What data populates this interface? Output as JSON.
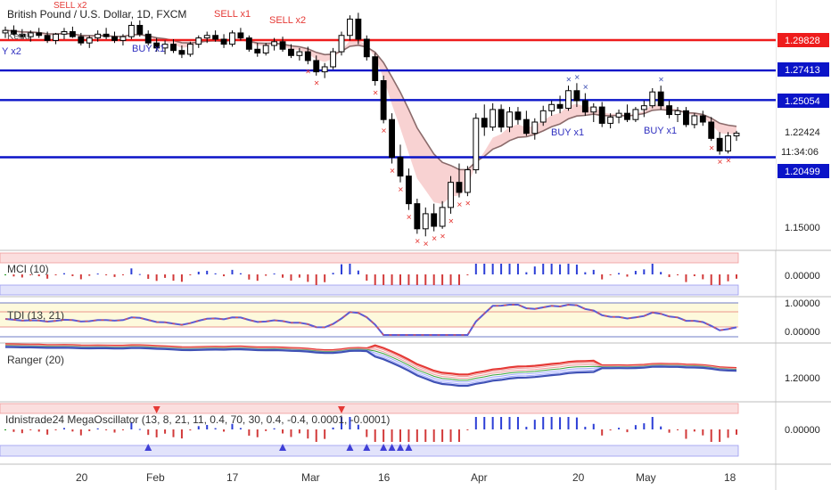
{
  "symbol_title": "British Pound / U.S. Dollar, 1D, FXCM",
  "colors": {
    "red_level": "#ee1c1c",
    "blue_level": "#0b14c8",
    "bull": "#ffffff",
    "bear": "#000000",
    "ma": "#8b6b6b",
    "fill": "#f6c7c7"
  },
  "price_axis": {
    "levels": [
      {
        "label": "1.29828",
        "price": 1.29828,
        "color": "#ee1c1c"
      },
      {
        "label": "1.27413",
        "price": 1.27413,
        "color": "#0b14c8"
      },
      {
        "label": "1.25054",
        "price": 1.25054,
        "color": "#0b14c8"
      },
      {
        "label": "1.20499",
        "price": 1.20499,
        "color": "#0b14c8"
      }
    ],
    "last_price": "1.22424",
    "countdown": "11:34:06",
    "ticks": [
      {
        "label": "1.15000",
        "price": 1.15
      }
    ]
  },
  "signals": [
    {
      "label": "SELL x2",
      "color": "red"
    },
    {
      "label": "SELL x1",
      "color": "red"
    },
    {
      "label": "SELL x2",
      "color": "red"
    },
    {
      "label": "BUY x1",
      "color": "blue"
    },
    {
      "label": "Y x2",
      "color": "blue"
    },
    {
      "label": "BUY x1",
      "color": "blue"
    },
    {
      "label": "BUY x1",
      "color": "blue"
    }
  ],
  "main_legend": "Kenu",
  "panes": [
    {
      "id": "mci",
      "title": "MCI (10)",
      "axis": [
        "0.00000"
      ]
    },
    {
      "id": "tdi",
      "title": "TDI (13, 21)",
      "axis": [
        "1.00000",
        "0.00000"
      ]
    },
    {
      "id": "ranger",
      "title": "Ranger (20)",
      "axis": [
        "1.20000"
      ]
    },
    {
      "id": "mega",
      "title": "Idnistrade24 MegaOscillator (13, 8, 21, 11, 0.4, 70, 30, 0.4, -0.4, 0.0001, -0.0001)",
      "axis": [
        "0.00000"
      ]
    }
  ],
  "time_axis": [
    "20",
    "Feb",
    "17",
    "Mar",
    "16",
    "Apr",
    "20",
    "May",
    "18"
  ],
  "chart_data": {
    "type": "candlestick",
    "title": "British Pound / U.S. Dollar, 1D, FXCM",
    "price_range": [
      1.12,
      1.34
    ],
    "horizontal_levels": [
      1.29828,
      1.27413,
      1.25054,
      1.20499
    ],
    "candles": [
      [
        1.304,
        1.309,
        1.3,
        1.306
      ],
      [
        1.306,
        1.31,
        1.302,
        1.303
      ],
      [
        1.303,
        1.307,
        1.299,
        1.301
      ],
      [
        1.301,
        1.306,
        1.297,
        1.304
      ],
      [
        1.304,
        1.308,
        1.3,
        1.302
      ],
      [
        1.302,
        1.305,
        1.296,
        1.298
      ],
      [
        1.298,
        1.304,
        1.295,
        1.303
      ],
      [
        1.303,
        1.308,
        1.299,
        1.305
      ],
      [
        1.305,
        1.309,
        1.3,
        1.301
      ],
      [
        1.301,
        1.304,
        1.294,
        1.296
      ],
      [
        1.296,
        1.302,
        1.292,
        1.3
      ],
      [
        1.3,
        1.306,
        1.297,
        1.303
      ],
      [
        1.303,
        1.308,
        1.299,
        1.301
      ],
      [
        1.301,
        1.305,
        1.296,
        1.298
      ],
      [
        1.298,
        1.303,
        1.294,
        1.301
      ],
      [
        1.301,
        1.313,
        1.299,
        1.31
      ],
      [
        1.31,
        1.314,
        1.301,
        1.303
      ],
      [
        1.303,
        1.306,
        1.294,
        1.296
      ],
      [
        1.296,
        1.3,
        1.289,
        1.292
      ],
      [
        1.292,
        1.298,
        1.287,
        1.295
      ],
      [
        1.295,
        1.299,
        1.288,
        1.29
      ],
      [
        1.29,
        1.294,
        1.284,
        1.287
      ],
      [
        1.287,
        1.297,
        1.285,
        1.295
      ],
      [
        1.295,
        1.302,
        1.292,
        1.3
      ],
      [
        1.3,
        1.305,
        1.296,
        1.302
      ],
      [
        1.302,
        1.306,
        1.297,
        1.299
      ],
      [
        1.299,
        1.303,
        1.292,
        1.295
      ],
      [
        1.295,
        1.306,
        1.293,
        1.304
      ],
      [
        1.304,
        1.308,
        1.298,
        1.3
      ],
      [
        1.3,
        1.302,
        1.289,
        1.291
      ],
      [
        1.291,
        1.296,
        1.285,
        1.288
      ],
      [
        1.288,
        1.296,
        1.286,
        1.294
      ],
      [
        1.294,
        1.3,
        1.29,
        1.297
      ],
      [
        1.297,
        1.301,
        1.289,
        1.291
      ],
      [
        1.291,
        1.295,
        1.284,
        1.286
      ],
      [
        1.286,
        1.292,
        1.282,
        1.289
      ],
      [
        1.289,
        1.293,
        1.279,
        1.282
      ],
      [
        1.282,
        1.286,
        1.27,
        1.273
      ],
      [
        1.273,
        1.28,
        1.268,
        1.277
      ],
      [
        1.277,
        1.292,
        1.275,
        1.289
      ],
      [
        1.289,
        1.305,
        1.286,
        1.302
      ],
      [
        1.302,
        1.318,
        1.298,
        1.315
      ],
      [
        1.315,
        1.32,
        1.295,
        1.299
      ],
      [
        1.299,
        1.302,
        1.282,
        1.285
      ],
      [
        1.285,
        1.288,
        1.262,
        1.266
      ],
      [
        1.266,
        1.27,
        1.232,
        1.235
      ],
      [
        1.235,
        1.24,
        1.2,
        1.205
      ],
      [
        1.205,
        1.215,
        1.185,
        1.19
      ],
      [
        1.19,
        1.196,
        1.163,
        1.168
      ],
      [
        1.168,
        1.172,
        1.144,
        1.148
      ],
      [
        1.148,
        1.165,
        1.142,
        1.16
      ],
      [
        1.16,
        1.168,
        1.146,
        1.15
      ],
      [
        1.15,
        1.17,
        1.148,
        1.165
      ],
      [
        1.165,
        1.19,
        1.16,
        1.185
      ],
      [
        1.185,
        1.2,
        1.173,
        1.177
      ],
      [
        1.177,
        1.198,
        1.174,
        1.195
      ],
      [
        1.195,
        1.24,
        1.192,
        1.236
      ],
      [
        1.236,
        1.247,
        1.222,
        1.229
      ],
      [
        1.229,
        1.248,
        1.226,
        1.243
      ],
      [
        1.243,
        1.247,
        1.225,
        1.229
      ],
      [
        1.229,
        1.245,
        1.225,
        1.241
      ],
      [
        1.241,
        1.245,
        1.231,
        1.235
      ],
      [
        1.235,
        1.242,
        1.222,
        1.224
      ],
      [
        1.224,
        1.236,
        1.219,
        1.233
      ],
      [
        1.233,
        1.246,
        1.23,
        1.242
      ],
      [
        1.242,
        1.25,
        1.238,
        1.247
      ],
      [
        1.247,
        1.254,
        1.24,
        1.244
      ],
      [
        1.244,
        1.262,
        1.242,
        1.258
      ],
      [
        1.258,
        1.264,
        1.245,
        1.25
      ],
      [
        1.25,
        1.256,
        1.238,
        1.241
      ],
      [
        1.241,
        1.248,
        1.233,
        1.245
      ],
      [
        1.245,
        1.249,
        1.229,
        1.232
      ],
      [
        1.232,
        1.24,
        1.228,
        1.237
      ],
      [
        1.237,
        1.243,
        1.232,
        1.24
      ],
      [
        1.24,
        1.247,
        1.233,
        1.235
      ],
      [
        1.235,
        1.245,
        1.233,
        1.243
      ],
      [
        1.243,
        1.25,
        1.237,
        1.246
      ],
      [
        1.246,
        1.26,
        1.244,
        1.257
      ],
      [
        1.257,
        1.262,
        1.243,
        1.246
      ],
      [
        1.246,
        1.25,
        1.236,
        1.239
      ],
      [
        1.239,
        1.245,
        1.233,
        1.242
      ],
      [
        1.242,
        1.245,
        1.229,
        1.231
      ],
      [
        1.231,
        1.24,
        1.228,
        1.238
      ],
      [
        1.238,
        1.242,
        1.23,
        1.233
      ],
      [
        1.233,
        1.237,
        1.218,
        1.22
      ],
      [
        1.22,
        1.225,
        1.207,
        1.21
      ],
      [
        1.21,
        1.225,
        1.208,
        1.222
      ],
      [
        1.222,
        1.226,
        1.218,
        1.2242
      ]
    ]
  }
}
